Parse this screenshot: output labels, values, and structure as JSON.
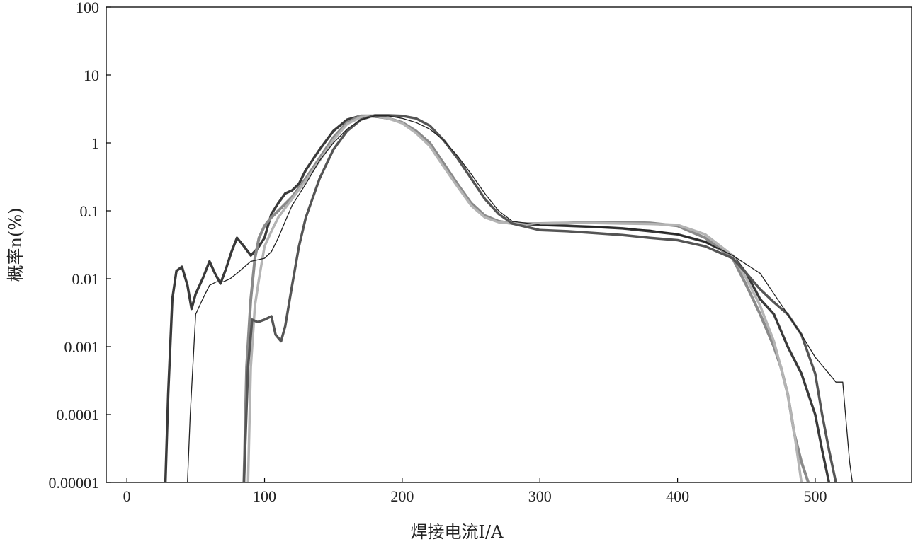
{
  "chart_data": {
    "type": "line",
    "xlabel": "焊接电流I/A",
    "ylabel": "概率n(%)",
    "y_scale": "log",
    "xlim": [
      -15,
      570
    ],
    "ylim": [
      1e-05,
      100
    ],
    "x_ticks": [
      0,
      100,
      200,
      300,
      400,
      500
    ],
    "x_tick_labels": [
      "0",
      "100",
      "200",
      "300",
      "400",
      "500"
    ],
    "y_ticks": [
      1e-05,
      0.0001,
      0.001,
      0.01,
      0.1,
      1,
      10,
      100
    ],
    "y_tick_labels": [
      "0.00001",
      "0.0001",
      "0.001",
      "0.01",
      "0.1",
      "1",
      "10",
      "100"
    ],
    "grid": false,
    "series": [
      {
        "color": "#3a3a3a",
        "width": 3.5,
        "x": [
          28,
          30,
          33,
          36,
          40,
          44,
          47,
          50,
          55,
          60,
          64,
          68,
          72,
          76,
          80,
          85,
          90,
          95,
          100,
          105,
          110,
          115,
          120,
          125,
          130,
          140,
          150,
          160,
          170,
          180,
          190,
          200,
          210,
          220,
          230,
          240,
          250,
          260,
          270,
          280,
          300,
          320,
          340,
          360,
          380,
          400,
          420,
          440,
          450,
          460,
          470,
          480,
          490,
          500,
          505,
          510,
          515
        ],
        "y": [
          1e-05,
          0.0002,
          0.005,
          0.013,
          0.015,
          0.008,
          0.0036,
          0.006,
          0.01,
          0.018,
          0.012,
          0.0085,
          0.014,
          0.025,
          0.04,
          0.03,
          0.022,
          0.028,
          0.04,
          0.09,
          0.13,
          0.18,
          0.2,
          0.25,
          0.4,
          0.8,
          1.5,
          2.2,
          2.5,
          2.45,
          2.3,
          2.0,
          1.5,
          1.0,
          0.5,
          0.25,
          0.13,
          0.085,
          0.07,
          0.066,
          0.062,
          0.06,
          0.058,
          0.055,
          0.05,
          0.045,
          0.035,
          0.022,
          0.012,
          0.005,
          0.003,
          0.001,
          0.0004,
          0.0001,
          3e-05,
          1e-05,
          1e-06
        ]
      },
      {
        "color": "#8a8a8a",
        "width": 4,
        "x": [
          85,
          87,
          90,
          93,
          96,
          100,
          105,
          110,
          120,
          130,
          140,
          150,
          160,
          170,
          180,
          190,
          200,
          210,
          220,
          230,
          240,
          250,
          260,
          270,
          280,
          300,
          320,
          340,
          360,
          380,
          400,
          420,
          440,
          450,
          460,
          470,
          475,
          480,
          485,
          490,
          495
        ],
        "y": [
          1e-05,
          0.0005,
          0.005,
          0.02,
          0.04,
          0.06,
          0.08,
          0.1,
          0.16,
          0.3,
          0.6,
          1.2,
          2.0,
          2.5,
          2.5,
          2.3,
          2.0,
          1.5,
          1.0,
          0.5,
          0.25,
          0.13,
          0.085,
          0.07,
          0.065,
          0.065,
          0.066,
          0.068,
          0.068,
          0.066,
          0.06,
          0.04,
          0.02,
          0.008,
          0.003,
          0.001,
          0.0005,
          0.0002,
          5e-05,
          2e-05,
          1e-05
        ]
      },
      {
        "color": "#b4b4b4",
        "width": 3.5,
        "x": [
          88,
          90,
          93,
          96,
          100,
          105,
          110,
          120,
          130,
          140,
          150,
          160,
          170,
          180,
          190,
          200,
          210,
          220,
          230,
          240,
          250,
          260,
          270,
          280,
          300,
          320,
          340,
          360,
          380,
          400,
          420,
          440,
          450,
          460,
          470,
          475,
          480,
          485,
          490
        ],
        "y": [
          1e-05,
          0.0005,
          0.004,
          0.01,
          0.03,
          0.05,
          0.08,
          0.15,
          0.28,
          0.55,
          1.1,
          1.9,
          2.4,
          2.5,
          2.3,
          1.95,
          1.4,
          0.9,
          0.45,
          0.23,
          0.12,
          0.08,
          0.068,
          0.065,
          0.065,
          0.066,
          0.066,
          0.065,
          0.064,
          0.062,
          0.045,
          0.022,
          0.01,
          0.004,
          0.0012,
          0.0005,
          0.0002,
          5e-05,
          1e-05
        ]
      },
      {
        "color": "#555555",
        "width": 3.5,
        "x": [
          85,
          88,
          91,
          95,
          100,
          105,
          108,
          112,
          115,
          120,
          125,
          130,
          140,
          150,
          160,
          170,
          180,
          190,
          200,
          210,
          220,
          230,
          240,
          250,
          260,
          270,
          280,
          300,
          320,
          340,
          360,
          380,
          400,
          420,
          440,
          450,
          460,
          470,
          480,
          490,
          500,
          505,
          510,
          515,
          518
        ],
        "y": [
          1e-05,
          0.0005,
          0.0025,
          0.0023,
          0.0025,
          0.0028,
          0.0015,
          0.0012,
          0.002,
          0.008,
          0.03,
          0.08,
          0.3,
          0.8,
          1.5,
          2.2,
          2.55,
          2.55,
          2.5,
          2.3,
          1.8,
          1.1,
          0.6,
          0.3,
          0.15,
          0.09,
          0.065,
          0.052,
          0.05,
          0.047,
          0.044,
          0.04,
          0.037,
          0.03,
          0.02,
          0.012,
          0.007,
          0.0045,
          0.003,
          0.0015,
          0.0004,
          0.0001,
          3e-05,
          1e-05,
          1e-06
        ]
      },
      {
        "color": "#222222",
        "width": 1.3,
        "x": [
          44,
          46,
          50,
          55,
          60,
          65,
          70,
          75,
          80,
          90,
          100,
          105,
          110,
          115,
          120,
          130,
          140,
          150,
          160,
          170,
          180,
          190,
          200,
          210,
          220,
          230,
          240,
          250,
          260,
          270,
          280,
          300,
          320,
          340,
          360,
          380,
          400,
          420,
          440,
          460,
          470,
          480,
          490,
          500,
          510,
          515,
          520,
          522,
          525,
          527
        ],
        "y": [
          1e-05,
          0.0001,
          0.003,
          0.005,
          0.008,
          0.009,
          0.009,
          0.01,
          0.012,
          0.018,
          0.02,
          0.025,
          0.04,
          0.07,
          0.12,
          0.25,
          0.55,
          1.0,
          1.6,
          2.2,
          2.5,
          2.5,
          2.3,
          2.0,
          1.6,
          1.1,
          0.65,
          0.35,
          0.18,
          0.1,
          0.07,
          0.062,
          0.06,
          0.058,
          0.055,
          0.052,
          0.045,
          0.035,
          0.022,
          0.012,
          0.006,
          0.003,
          0.0015,
          0.0007,
          0.0004,
          0.0003,
          0.0003,
          0.0001,
          2e-05,
          1e-05
        ]
      }
    ]
  }
}
